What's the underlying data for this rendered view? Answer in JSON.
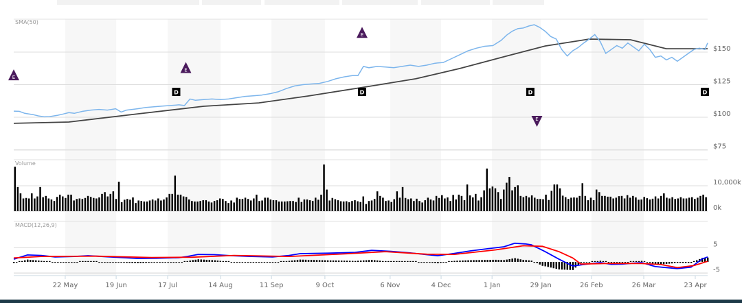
{
  "chart_data": {
    "type": "line",
    "panels": [
      {
        "name": "price",
        "label": "SMA(50)",
        "ylim": [
          75,
          175
        ],
        "ticks": [
          {
            "v": 150,
            "label": "$150"
          },
          {
            "v": 125,
            "label": "$125"
          },
          {
            "v": 100,
            "label": "$100"
          },
          {
            "v": 75,
            "label": "$75"
          }
        ]
      },
      {
        "name": "volume",
        "label": "Volume",
        "ylim": [
          0,
          20000
        ],
        "ticks": [
          {
            "v": 10000,
            "label": "10,000k"
          },
          {
            "v": 0,
            "label": "0k"
          }
        ]
      },
      {
        "name": "macd",
        "label": "MACD(12,26,9)",
        "ylim": [
          -5.5,
          10
        ],
        "ticks": [
          {
            "v": 5,
            "label": "5"
          },
          {
            "v": -5,
            "label": "-5"
          }
        ]
      }
    ],
    "x_days": 252,
    "x_ticks": [
      {
        "label": "22 May",
        "day": 18.7
      },
      {
        "label": "19 Jun",
        "day": 37.2
      },
      {
        "label": "17 Jul",
        "day": 55.9
      },
      {
        "label": "14 Aug",
        "day": 75.1
      },
      {
        "label": "11 Sep",
        "day": 93.6
      },
      {
        "label": "9 Oct",
        "day": 113
      },
      {
        "label": "6 Nov",
        "day": 136.7
      },
      {
        "label": "4 Dec",
        "day": 155.2
      },
      {
        "label": "1 Jan",
        "day": 173.7
      },
      {
        "label": "29 Jan",
        "day": 191.4
      },
      {
        "label": "26 Feb",
        "day": 209.8
      },
      {
        "label": "26 Mar",
        "day": 228.8
      },
      {
        "label": "23 Apr",
        "day": 247.5
      }
    ],
    "series": [
      {
        "name": "Price",
        "color": "#7cb5ec",
        "points": [
          [
            0,
            104.7
          ],
          [
            2,
            104.5
          ],
          [
            4,
            103
          ],
          [
            7,
            102
          ],
          [
            9,
            101
          ],
          [
            11,
            100.3
          ],
          [
            13,
            100.5
          ],
          [
            16,
            101.5
          ],
          [
            18,
            102.5
          ],
          [
            20,
            103.5
          ],
          [
            22,
            103
          ],
          [
            25,
            104.5
          ],
          [
            28,
            105.5
          ],
          [
            31,
            106
          ],
          [
            34,
            105.5
          ],
          [
            37,
            106.5
          ],
          [
            39,
            104
          ],
          [
            41,
            105.5
          ],
          [
            45,
            106.5
          ],
          [
            48,
            107.5
          ],
          [
            51,
            108
          ],
          [
            54,
            108.5
          ],
          [
            57,
            109
          ],
          [
            60,
            109.5
          ],
          [
            62,
            109
          ],
          [
            64,
            114
          ],
          [
            66,
            113
          ],
          [
            69,
            113.5
          ],
          [
            72,
            114
          ],
          [
            75,
            113.5
          ],
          [
            78,
            114
          ],
          [
            81,
            115
          ],
          [
            84,
            116
          ],
          [
            87,
            116.5
          ],
          [
            90,
            117
          ],
          [
            93,
            118
          ],
          [
            96,
            119.5
          ],
          [
            99,
            122
          ],
          [
            102,
            124
          ],
          [
            105,
            125
          ],
          [
            108,
            125.5
          ],
          [
            111,
            126
          ],
          [
            114,
            127.5
          ],
          [
            117,
            129.5
          ],
          [
            120,
            131
          ],
          [
            123,
            132
          ],
          [
            125,
            132
          ],
          [
            127,
            139
          ],
          [
            129,
            138
          ],
          [
            132,
            139
          ],
          [
            135,
            138.5
          ],
          [
            138,
            138
          ],
          [
            141,
            139
          ],
          [
            144,
            140
          ],
          [
            147,
            139
          ],
          [
            150,
            140
          ],
          [
            153,
            141.5
          ],
          [
            156,
            142
          ],
          [
            159,
            145
          ],
          [
            162,
            148
          ],
          [
            165,
            151
          ],
          [
            168,
            153
          ],
          [
            171,
            154.5
          ],
          [
            174,
            155
          ],
          [
            177,
            159
          ],
          [
            179,
            163
          ],
          [
            181,
            166
          ],
          [
            183,
            168
          ],
          [
            185,
            168.5
          ],
          [
            187,
            170
          ],
          [
            189,
            171
          ],
          [
            191,
            169
          ],
          [
            193,
            166
          ],
          [
            195,
            162
          ],
          [
            197,
            160
          ],
          [
            199,
            152
          ],
          [
            201,
            147
          ],
          [
            203,
            151
          ],
          [
            205,
            153.5
          ],
          [
            207,
            157
          ],
          [
            209,
            160
          ],
          [
            211,
            163.5
          ],
          [
            213,
            158
          ],
          [
            215,
            149
          ],
          [
            217,
            152
          ],
          [
            219,
            155
          ],
          [
            221,
            153
          ],
          [
            223,
            157
          ],
          [
            225,
            154
          ],
          [
            227,
            151
          ],
          [
            229,
            156
          ],
          [
            231,
            152
          ],
          [
            233,
            146
          ],
          [
            235,
            147
          ],
          [
            237,
            144
          ],
          [
            239,
            146
          ],
          [
            241,
            143
          ],
          [
            243,
            146
          ],
          [
            245,
            149
          ],
          [
            247,
            152
          ],
          [
            249,
            153
          ],
          [
            251,
            152
          ],
          [
            252,
            157
          ]
        ]
      },
      {
        "name": "SMA(50)",
        "color": "#444444",
        "points": [
          [
            0,
            95.3
          ],
          [
            20,
            96.3
          ],
          [
            45,
            102.6
          ],
          [
            69,
            108.4
          ],
          [
            89,
            111
          ],
          [
            107,
            116.3
          ],
          [
            129,
            123.7
          ],
          [
            146,
            129.5
          ],
          [
            162,
            137.4
          ],
          [
            179,
            147
          ],
          [
            193,
            154.7
          ],
          [
            209,
            160
          ],
          [
            224,
            159.5
          ],
          [
            237,
            152.6
          ],
          [
            252,
            152.6
          ]
        ]
      }
    ],
    "volume_k": [
      17500,
      9500,
      7000,
      5000,
      5200,
      5000,
      7000,
      5000,
      5800,
      9500,
      5500,
      6000,
      5000,
      4600,
      4000,
      5600,
      6500,
      5800,
      5200,
      6500,
      6500,
      4200,
      4800,
      5000,
      4800,
      5200,
      6000,
      5600,
      5200,
      5000,
      5400,
      6800,
      7500,
      5800,
      6800,
      7800,
      4800,
      11600,
      3500,
      4500,
      4800,
      4500,
      5400,
      3200,
      4200,
      4000,
      3800,
      3800,
      4200,
      4600,
      4200,
      5000,
      4200,
      4600,
      5400,
      6800,
      6800,
      14000,
      6500,
      6500,
      5800,
      5600,
      4600,
      4000,
      3800,
      3800,
      4000,
      4300,
      4300,
      3800,
      3400,
      4000,
      4300,
      5000,
      4800,
      4000,
      3200,
      4200,
      3400,
      5300,
      4800,
      4800,
      5300,
      4800,
      4200,
      5000,
      6500,
      4000,
      4200,
      5300,
      5300,
      4600,
      4300,
      4300,
      3800,
      3800,
      3800,
      3900,
      4000,
      4000,
      3600,
      5300,
      3600,
      4600,
      4600,
      4300,
      4000,
      5300,
      4500,
      6500,
      18400,
      8500,
      4200,
      5200,
      4700,
      4300,
      3900,
      3800,
      3900,
      3500,
      4000,
      4300,
      3900,
      3600,
      5800,
      2800,
      4000,
      4200,
      4800,
      7800,
      6000,
      5300,
      4000,
      4200,
      3600,
      4700,
      7800,
      5300,
      9500,
      5200,
      4700,
      5000,
      4000,
      4900,
      4000,
      3400,
      4300,
      5300,
      4600,
      4200,
      6000,
      5200,
      6300,
      5000,
      5400,
      4000,
      6400,
      4600,
      6500,
      6000,
      4300,
      10500,
      6200,
      5400,
      6800,
      4200,
      5500,
      8200,
      16800,
      9000,
      9700,
      9000,
      7500,
      4800,
      8500,
      11200,
      13500,
      8200,
      9500,
      10200,
      6000,
      5500,
      6000,
      5400,
      6200,
      5300,
      4800,
      4800,
      4700,
      6500,
      4400,
      8000,
      10500,
      10500,
      9000,
      6100,
      5500,
      4800,
      5300,
      5400,
      5300,
      6000,
      11000,
      6000,
      4300,
      5300,
      4300,
      8500,
      7500,
      6000,
      6000,
      5700,
      5700,
      5000,
      5300,
      5900,
      6000,
      5000,
      6300,
      5300,
      6000,
      5400,
      4500,
      4600,
      5600,
      5100,
      4600,
      4900,
      5800,
      5000,
      6000,
      7000,
      5300,
      5000,
      5500,
      4800,
      5000,
      5500,
      5000,
      5000,
      5300,
      5500,
      4800,
      5300,
      6000,
      6500,
      5500
    ],
    "macd": [
      [
        0,
        0.5
      ],
      [
        5,
        2.2
      ],
      [
        10,
        2.0
      ],
      [
        15,
        1.4
      ],
      [
        22,
        1.6
      ],
      [
        27,
        1.9
      ],
      [
        35,
        1.4
      ],
      [
        45,
        0.8
      ],
      [
        52,
        0.9
      ],
      [
        60,
        1.1
      ],
      [
        63,
        1.6
      ],
      [
        67,
        2.4
      ],
      [
        73,
        2.3
      ],
      [
        79,
        1.9
      ],
      [
        86,
        1.6
      ],
      [
        94,
        1.4
      ],
      [
        100,
        2.0
      ],
      [
        104,
        2.7
      ],
      [
        114,
        2.9
      ],
      [
        124,
        3.2
      ],
      [
        130,
        4.0
      ],
      [
        137,
        3.6
      ],
      [
        144,
        3.0
      ],
      [
        150,
        2.3
      ],
      [
        154,
        1.9
      ],
      [
        160,
        2.8
      ],
      [
        166,
        3.8
      ],
      [
        174,
        4.9
      ],
      [
        178,
        5.4
      ],
      [
        182,
        6.8
      ],
      [
        186,
        6.5
      ],
      [
        188,
        6.2
      ],
      [
        193,
        3.5
      ],
      [
        198,
        0.5
      ],
      [
        203,
        -2.2
      ],
      [
        207,
        -1.6
      ],
      [
        213,
        -0.8
      ],
      [
        217,
        -1.5
      ],
      [
        221,
        -1.4
      ],
      [
        228,
        -0.8
      ],
      [
        233,
        -2.4
      ],
      [
        241,
        -3.2
      ],
      [
        246,
        -2.6
      ],
      [
        250,
        0.6
      ],
      [
        252,
        1.4
      ]
    ],
    "signal": [
      [
        0,
        1.0
      ],
      [
        10,
        1.6
      ],
      [
        30,
        1.7
      ],
      [
        50,
        1.2
      ],
      [
        65,
        1.3
      ],
      [
        80,
        2.0
      ],
      [
        100,
        1.6
      ],
      [
        120,
        2.6
      ],
      [
        135,
        3.5
      ],
      [
        150,
        2.5
      ],
      [
        160,
        2.4
      ],
      [
        175,
        4.2
      ],
      [
        185,
        5.8
      ],
      [
        192,
        5.6
      ],
      [
        198,
        3.5
      ],
      [
        203,
        1.0
      ],
      [
        206,
        -1.4
      ],
      [
        215,
        -1.2
      ],
      [
        228,
        -1.2
      ],
      [
        235,
        -1.6
      ],
      [
        241,
        -2.8
      ],
      [
        247,
        -2.0
      ],
      [
        252,
        -0.3
      ]
    ],
    "macd_colors": {
      "macd": "#0000ff",
      "signal": "#ff0000",
      "histogram": "#000000"
    },
    "events": [
      {
        "type": "E",
        "dir": "up",
        "day": 0
      },
      {
        "type": "E",
        "dir": "up",
        "day": 62.5
      },
      {
        "type": "E",
        "dir": "up",
        "day": 126.5
      },
      {
        "type": "E",
        "dir": "down",
        "day": 190
      },
      {
        "type": "D",
        "day": 59
      },
      {
        "type": "D",
        "day": 126.5
      },
      {
        "type": "D",
        "day": 187.6
      },
      {
        "type": "D",
        "day": 251
      }
    ],
    "event_color": "#4a1a5c"
  }
}
